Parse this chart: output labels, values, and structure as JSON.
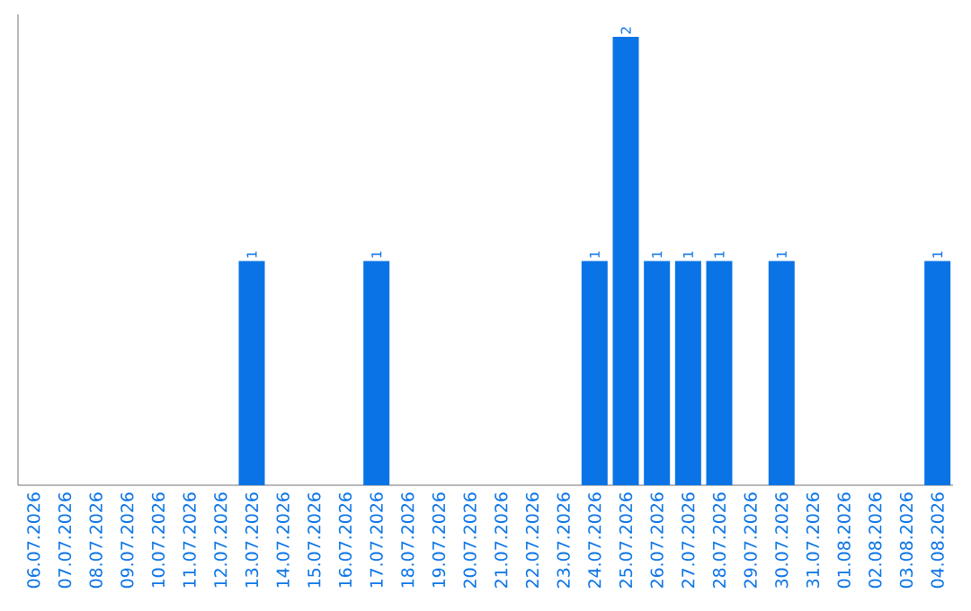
{
  "chart_data": {
    "type": "bar",
    "color": "#0a74e6",
    "categories": [
      "06.07.2026",
      "07.07.2026",
      "08.07.2026",
      "09.07.2026",
      "10.07.2026",
      "11.07.2026",
      "12.07.2026",
      "13.07.2026",
      "14.07.2026",
      "15.07.2026",
      "16.07.2026",
      "17.07.2026",
      "18.07.2026",
      "19.07.2026",
      "20.07.2026",
      "21.07.2026",
      "22.07.2026",
      "23.07.2026",
      "24.07.2026",
      "25.07.2026",
      "26.07.2026",
      "27.07.2026",
      "28.07.2026",
      "29.07.2026",
      "30.07.2026",
      "31.07.2026",
      "01.08.2026",
      "02.08.2026",
      "03.08.2026",
      "04.08.2026"
    ],
    "values": [
      0,
      0,
      0,
      0,
      0,
      0,
      0,
      1,
      0,
      0,
      0,
      1,
      0,
      0,
      0,
      0,
      0,
      0,
      1,
      2,
      1,
      1,
      1,
      0,
      1,
      0,
      0,
      0,
      0,
      1
    ],
    "value_labels": [
      null,
      null,
      null,
      null,
      null,
      null,
      null,
      "1",
      null,
      null,
      null,
      "1",
      null,
      null,
      null,
      null,
      null,
      null,
      "1",
      "2",
      "1",
      "1",
      "1",
      null,
      "1",
      null,
      null,
      null,
      null,
      "1"
    ],
    "tick_labels": "x"
  }
}
